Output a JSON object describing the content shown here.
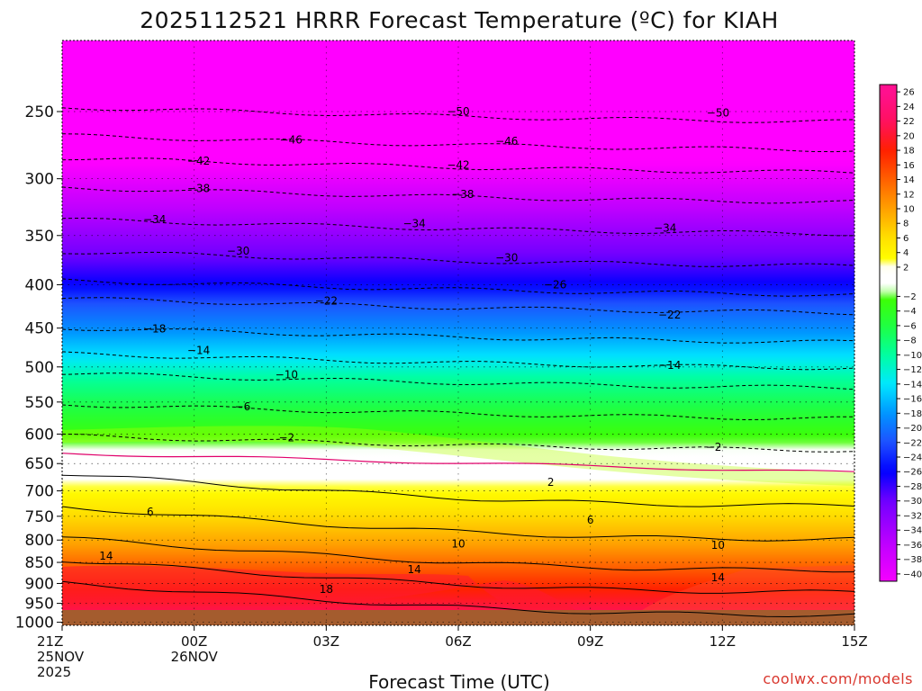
{
  "chart_data": {
    "type": "heatmap",
    "title": "2025112521 HRRR Forecast Temperature (ºC) for KIAH",
    "xlabel": "Forecast Time (UTC)",
    "ylabel": "",
    "credit": "coolwx.com/models",
    "x_ticks": [
      {
        "label": "21Z",
        "sub1": "25NOV",
        "sub2": "2025",
        "hour": 0
      },
      {
        "label": "00Z",
        "sub1": "26NOV",
        "sub2": "",
        "hour": 3
      },
      {
        "label": "03Z",
        "sub1": "",
        "sub2": "",
        "hour": 6
      },
      {
        "label": "06Z",
        "sub1": "",
        "sub2": "",
        "hour": 9
      },
      {
        "label": "09Z",
        "sub1": "",
        "sub2": "",
        "hour": 12
      },
      {
        "label": "12Z",
        "sub1": "",
        "sub2": "",
        "hour": 15
      },
      {
        "label": "15Z",
        "sub1": "",
        "sub2": "",
        "hour": 18
      }
    ],
    "x_range_hours": [
      0,
      18
    ],
    "y_ticks": [
      250,
      300,
      350,
      400,
      450,
      500,
      550,
      600,
      650,
      700,
      750,
      800,
      850,
      900,
      950,
      1000
    ],
    "y_range_hPa": [
      200,
      1020
    ],
    "y_scale": "log",
    "grid": "dotted",
    "colorbar": {
      "position": "right",
      "ticks": [
        26,
        24,
        22,
        20,
        18,
        16,
        14,
        12,
        10,
        8,
        6,
        4,
        2,
        -2,
        -4,
        -6,
        -8,
        -10,
        -12,
        -14,
        -16,
        -18,
        -20,
        -22,
        -24,
        -26,
        -28,
        -30,
        -32,
        -34,
        -36,
        -38,
        -40
      ]
    },
    "series": [
      {
        "values": [
          {
            "level": -50,
            "p": 250
          },
          {
            "level": -46,
            "p": 270
          },
          {
            "level": -42,
            "p": 287
          },
          {
            "level": -38,
            "p": 311
          },
          {
            "level": -34,
            "p": 339
          },
          {
            "level": -30,
            "p": 370
          },
          {
            "level": -26,
            "p": 400
          },
          {
            "level": -22,
            "p": 420
          },
          {
            "level": -18,
            "p": 455
          },
          {
            "level": -14,
            "p": 488
          },
          {
            "level": -10,
            "p": 515
          },
          {
            "level": -6,
            "p": 560
          },
          {
            "level": -2,
            "p": 610
          },
          {
            "level": 2,
            "p": 680
          },
          {
            "level": 6,
            "p": 745
          },
          {
            "level": 10,
            "p": 810
          },
          {
            "level": 14,
            "p": 860
          },
          {
            "level": 18,
            "p": 915
          }
        ]
      }
    ],
    "contour_labels": [
      {
        "text": "−50",
        "hour": 9.0,
        "p": 250
      },
      {
        "text": "−50",
        "hour": 14.9,
        "p": 251
      },
      {
        "text": "−46",
        "hour": 5.2,
        "p": 270
      },
      {
        "text": "−46",
        "hour": 10.1,
        "p": 271
      },
      {
        "text": "−42",
        "hour": 3.1,
        "p": 286
      },
      {
        "text": "−42",
        "hour": 9.0,
        "p": 289
      },
      {
        "text": "−38",
        "hour": 3.1,
        "p": 308
      },
      {
        "text": "−38",
        "hour": 9.1,
        "p": 313
      },
      {
        "text": "−34",
        "hour": 2.1,
        "p": 335
      },
      {
        "text": "−34",
        "hour": 8.0,
        "p": 339
      },
      {
        "text": "−34",
        "hour": 13.7,
        "p": 343
      },
      {
        "text": "−30",
        "hour": 4.0,
        "p": 365
      },
      {
        "text": "−30",
        "hour": 10.1,
        "p": 372
      },
      {
        "text": "−26",
        "hour": 11.2,
        "p": 400
      },
      {
        "text": "−22",
        "hour": 6.0,
        "p": 418
      },
      {
        "text": "−22",
        "hour": 13.8,
        "p": 434
      },
      {
        "text": "−18",
        "hour": 2.1,
        "p": 451
      },
      {
        "text": "−14",
        "hour": 3.1,
        "p": 478
      },
      {
        "text": "−14",
        "hour": 13.8,
        "p": 498
      },
      {
        "text": "−10",
        "hour": 5.1,
        "p": 511
      },
      {
        "text": "−6",
        "hour": 4.1,
        "p": 557
      },
      {
        "text": "−2",
        "hour": 5.1,
        "p": 606
      },
      {
        "text": "−2",
        "hour": 14.8,
        "p": 622
      },
      {
        "text": "2",
        "hour": 11.1,
        "p": 684
      },
      {
        "text": "6",
        "hour": 2.0,
        "p": 741
      },
      {
        "text": "6",
        "hour": 12.0,
        "p": 758
      },
      {
        "text": "10",
        "hour": 9.0,
        "p": 808
      },
      {
        "text": "10",
        "hour": 14.9,
        "p": 811
      },
      {
        "text": "14",
        "hour": 1.0,
        "p": 835
      },
      {
        "text": "14",
        "hour": 8.0,
        "p": 867
      },
      {
        "text": "14",
        "hour": 14.9,
        "p": 886
      },
      {
        "text": "18",
        "hour": 6.0,
        "p": 914
      }
    ]
  }
}
